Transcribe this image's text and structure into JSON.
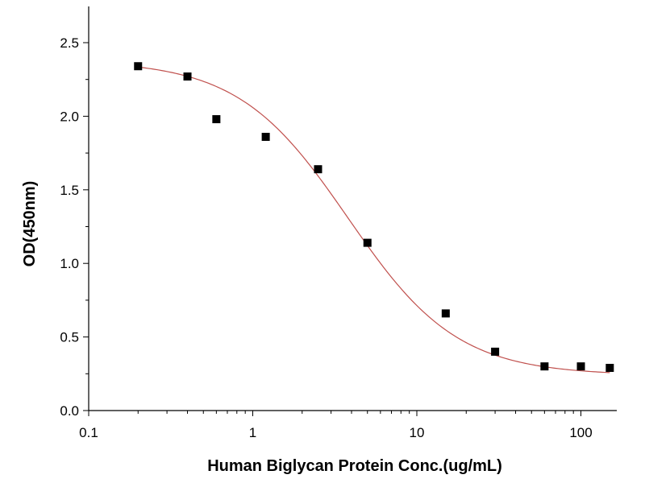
{
  "chart_data": {
    "type": "scatter",
    "xlabel": "Human Biglycan Protein Conc.(ug/mL)",
    "ylabel": "OD(450nm)",
    "xscale": "log",
    "xlim": [
      0.1,
      150
    ],
    "ylim": [
      0.0,
      2.75
    ],
    "xticks": [
      0.1,
      1,
      10,
      100
    ],
    "xtick_labels": [
      "0.1",
      "1",
      "10",
      "100"
    ],
    "yticks": [
      0.0,
      0.5,
      1.0,
      1.5,
      2.0,
      2.5
    ],
    "ytick_labels": [
      "0.0",
      "0.5",
      "1.0",
      "1.5",
      "2.0",
      "2.5"
    ],
    "grid": false,
    "series": [
      {
        "marker": "square",
        "color": "#000000",
        "x": [
          0.2,
          0.4,
          0.6,
          1.2,
          2.5,
          5,
          15,
          30,
          60,
          100,
          150
        ],
        "y": [
          2.34,
          2.27,
          1.98,
          1.86,
          1.64,
          1.14,
          0.66,
          0.4,
          0.3,
          0.3,
          0.29
        ]
      }
    ],
    "fit_curve": {
      "type": "4PL",
      "color": "#c0504d",
      "top": 2.38,
      "bottom": 0.24,
      "ec50": 3.8,
      "hill": 1.3,
      "x_range": [
        0.2,
        150
      ]
    }
  }
}
